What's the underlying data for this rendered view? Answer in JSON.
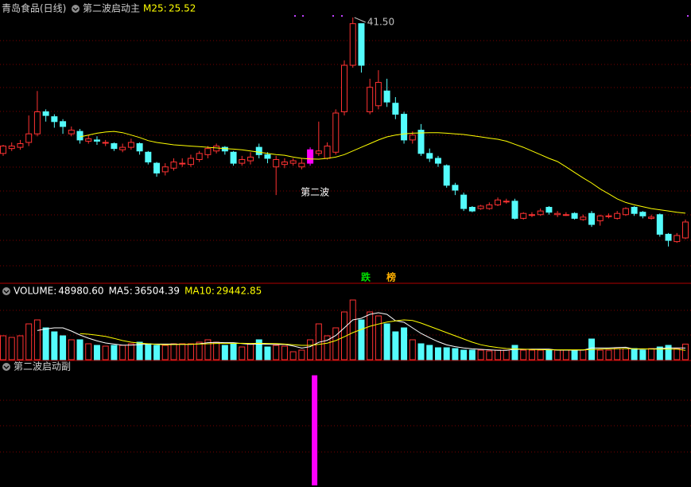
{
  "chart_data": [
    {
      "type": "candlestick",
      "title": "青岛食品(日线)",
      "subtitle": "第二波启动主",
      "open": [
        30.4,
        30.8,
        30.9,
        31.3,
        32.0,
        33.8,
        33.4,
        33.0,
        32.0,
        32.2,
        31.4,
        31.5,
        31.3,
        31.2,
        30.7,
        30.9,
        31.2,
        30.5,
        29.6,
        28.9,
        29.2,
        29.6,
        29.5,
        29.9,
        30.3,
        30.6,
        30.9,
        30.5,
        29.6,
        29.8,
        30.9,
        30.3,
        29.3,
        29.5,
        29.6,
        29.3,
        29.6,
        30.4,
        30.0,
        30.5,
        33.8,
        37.6,
        41.0,
        33.8,
        34.3,
        35.5,
        34.5,
        33.6,
        31.5,
        32.3,
        30.4,
        30.0,
        29.4,
        27.8,
        27.0,
        26.0,
        25.9,
        25.9,
        26.2,
        26.5,
        26.5,
        25.1,
        25.4,
        25.4,
        26.0,
        25.4,
        25.4,
        25.5,
        25.0,
        25.5,
        24.9,
        25.3,
        25.1,
        25.4,
        26.0,
        25.6,
        25.1,
        25.4,
        23.8,
        23.2,
        23.5
      ],
      "high": [
        31.1,
        31.3,
        31.5,
        33.5,
        35.5,
        34.0,
        33.6,
        33.2,
        32.6,
        32.4,
        31.9,
        31.8,
        31.5,
        31.3,
        31.2,
        31.6,
        31.3,
        30.6,
        29.7,
        29.6,
        30.0,
        30.0,
        30.3,
        30.6,
        31.0,
        31.2,
        31.0,
        30.6,
        30.2,
        30.5,
        31.2,
        30.5,
        30.2,
        30.0,
        30.0,
        30.0,
        30.9,
        33.0,
        31.3,
        34.0,
        38.0,
        41.5,
        41.0,
        36.5,
        37.2,
        36.5,
        35.0,
        33.8,
        32.2,
        32.8,
        30.8,
        30.2,
        29.5,
        28.0,
        27.2,
        26.1,
        26.2,
        26.4,
        26.8,
        26.7,
        26.7,
        25.6,
        25.6,
        25.9,
        26.1,
        25.7,
        25.6,
        25.6,
        25.4,
        25.7,
        25.4,
        25.5,
        25.7,
        26.0,
        26.1,
        25.7,
        25.4,
        25.5,
        23.9,
        23.9,
        25.0
      ],
      "low": [
        30.2,
        30.6,
        30.7,
        31.0,
        31.8,
        33.0,
        32.5,
        32.0,
        31.8,
        31.2,
        31.2,
        31.1,
        31.0,
        30.6,
        30.5,
        30.7,
        30.3,
        29.5,
        28.5,
        28.6,
        29.0,
        29.3,
        29.3,
        29.7,
        30.0,
        30.4,
        30.3,
        29.4,
        29.4,
        29.5,
        30.0,
        29.6,
        27.0,
        29.2,
        29.4,
        29.1,
        29.4,
        30.2,
        29.9,
        30.3,
        33.5,
        37.4,
        37.0,
        33.6,
        34.0,
        34.2,
        33.2,
        31.2,
        31.2,
        30.2,
        29.7,
        29.3,
        27.6,
        27.0,
        25.7,
        25.6,
        25.8,
        25.8,
        26.1,
        26.3,
        25.0,
        25.0,
        25.2,
        25.3,
        25.4,
        25.2,
        25.3,
        25.0,
        24.9,
        24.4,
        24.5,
        25.1,
        25.0,
        25.3,
        25.3,
        25.1,
        25.0,
        23.6,
        22.8,
        23.1,
        23.4
      ],
      "close": [
        31.0,
        31.0,
        31.2,
        32.0,
        33.8,
        33.5,
        33.0,
        32.6,
        32.3,
        31.5,
        31.6,
        31.4,
        31.3,
        30.8,
        30.9,
        31.3,
        30.6,
        29.7,
        28.8,
        29.3,
        29.7,
        29.6,
        30.0,
        30.4,
        30.8,
        31.0,
        30.6,
        29.6,
        29.9,
        30.1,
        30.3,
        30.0,
        29.9,
        29.7,
        29.8,
        29.6,
        30.7,
        30.6,
        31.0,
        33.7,
        37.6,
        41.0,
        37.6,
        35.8,
        36.2,
        34.6,
        33.6,
        31.5,
        31.9,
        30.4,
        30.0,
        29.6,
        27.8,
        27.4,
        25.9,
        25.7,
        26.1,
        26.2,
        26.6,
        26.5,
        25.1,
        25.5,
        25.4,
        25.7,
        25.6,
        25.5,
        25.4,
        25.1,
        25.2,
        24.6,
        25.3,
        25.3,
        25.5,
        25.9,
        25.5,
        25.3,
        25.2,
        23.8,
        23.3,
        23.7,
        24.8
      ],
      "up_color": "#ff3232",
      "down_color": "#54fcfc",
      "signal_color": "#ff00ff",
      "series": [
        {
          "name": "M25:",
          "color": "#ffff00",
          "values": [
            null,
            null,
            null,
            null,
            null,
            null,
            null,
            null,
            null,
            31.75,
            31.9,
            32.05,
            32.15,
            32.2,
            32.1,
            31.9,
            31.7,
            31.45,
            31.3,
            31.2,
            31.1,
            31.05,
            31.0,
            30.95,
            30.9,
            30.85,
            30.8,
            30.75,
            30.7,
            30.6,
            30.5,
            30.4,
            30.3,
            30.25,
            30.1,
            30.0,
            29.95,
            29.93,
            30.0,
            30.1,
            30.3,
            30.6,
            30.9,
            31.2,
            31.5,
            31.75,
            31.9,
            32.0,
            32.05,
            32.08,
            32.1,
            32.1,
            32.05,
            32.0,
            31.95,
            31.85,
            31.75,
            31.65,
            31.56,
            31.4,
            31.15,
            30.9,
            30.6,
            30.3,
            30.0,
            29.74,
            29.3,
            28.85,
            28.4,
            27.98,
            27.5,
            27.1,
            26.69,
            26.4,
            26.2,
            26.05,
            25.9,
            25.8,
            25.7,
            25.6,
            25.52
          ]
        }
      ],
      "ylim": [
        19.86,
        42.41
      ],
      "annotations": [
        {
          "text": "41.50",
          "index": 41,
          "value": 41.5
        },
        {
          "text": "第二波",
          "index": 36,
          "value": 27.2
        }
      ],
      "badges": [
        {
          "text": "跌",
          "color": "#00e000"
        },
        {
          "text": "榜",
          "color": "#ffb000"
        }
      ]
    },
    {
      "type": "volume",
      "series": [
        {
          "name": "VOLUME:",
          "readout": "48980.60",
          "color": "#ffffff",
          "values": [
            75000,
            70000,
            75000,
            112500,
            125000,
            100000,
            87500,
            75000,
            62500,
            62500,
            50000,
            45000,
            42500,
            45000,
            45000,
            50000,
            55000,
            50000,
            45000,
            45000,
            50000,
            50000,
            50000,
            55000,
            62500,
            55000,
            45000,
            50000,
            40000,
            50000,
            62500,
            40000,
            45000,
            42500,
            25000,
            30000,
            62500,
            112500,
            75000,
            100000,
            150000,
            187500,
            125000,
            150000,
            137500,
            112500,
            87500,
            100000,
            62500,
            50000,
            45000,
            37500,
            37500,
            35000,
            30000,
            30000,
            30000,
            27500,
            30000,
            30000,
            45000,
            30000,
            30000,
            30000,
            30000,
            30000,
            30000,
            30000,
            30000,
            65000,
            30000,
            30000,
            35000,
            35000,
            35000,
            30000,
            35000,
            40000,
            45000,
            35000,
            48980.6
          ]
        },
        {
          "name": "MA5:",
          "readout": "36504.39",
          "color": "#ffffff",
          "values": [
            null,
            null,
            null,
            null,
            91500,
            96500,
            100000,
            100000,
            90000,
            77500,
            67500,
            59000,
            52500,
            49000,
            45500,
            45500,
            47500,
            49000,
            49000,
            49000,
            49000,
            48000,
            48000,
            50000,
            53500,
            54500,
            53500,
            53500,
            50500,
            48000,
            49500,
            48500,
            47500,
            48000,
            43000,
            36500,
            41000,
            54500,
            61000,
            76000,
            100000,
            125000,
            130000,
            142500,
            147500,
            142500,
            122500,
            117500,
            100000,
            82500,
            69000,
            56500,
            46500,
            41000,
            37000,
            34000,
            32500,
            31000,
            29500,
            29500,
            32500,
            32500,
            33000,
            33000,
            33000,
            30000,
            30000,
            30000,
            30000,
            37000,
            37000,
            37000,
            38000,
            39000,
            33000,
            33000,
            34000,
            35000,
            37000,
            37000,
            36504.39
          ]
        },
        {
          "name": "MA10:",
          "readout": "29442.85",
          "color": "#ffff00",
          "values": [
            null,
            null,
            null,
            null,
            null,
            null,
            null,
            null,
            null,
            82000,
            80000,
            77000,
            73000,
            67000,
            60000,
            55000,
            52000,
            50000,
            48000,
            47000,
            47500,
            48000,
            48500,
            49000,
            50000,
            51000,
            51000,
            51000,
            51500,
            51000,
            51500,
            51000,
            50500,
            49000,
            47000,
            45000,
            45000,
            48000,
            52000,
            60000,
            72000,
            85000,
            95000,
            105000,
            112000,
            118000,
            122000,
            125000,
            123000,
            115000,
            105000,
            95000,
            85000,
            75000,
            65000,
            55000,
            47000,
            42000,
            38000,
            35000,
            34000,
            33000,
            32000,
            31500,
            31000,
            31000,
            31000,
            31000,
            31000,
            32000,
            33000,
            34000,
            34500,
            35000,
            34000,
            34000,
            33500,
            33000,
            33000,
            33000,
            29442.85
          ]
        }
      ],
      "ylim": [
        0,
        230000
      ]
    },
    {
      "type": "signal",
      "title": "第二波启动副",
      "color": "#ff00ff",
      "values": [
        0,
        0,
        0,
        0,
        0,
        0,
        0,
        0,
        0,
        0,
        0,
        0,
        0,
        0,
        0,
        0,
        0,
        0,
        0,
        0,
        0,
        0,
        0,
        0,
        0,
        0,
        0,
        0,
        0,
        0,
        0,
        0,
        0,
        0,
        0,
        0,
        1,
        0,
        0,
        0,
        0,
        0,
        0,
        0,
        0,
        0,
        0,
        0,
        0,
        0,
        0,
        0,
        0,
        0,
        0,
        0,
        0,
        0,
        0,
        0,
        0,
        0,
        0,
        0,
        0,
        0,
        0,
        0,
        0,
        0,
        0,
        0,
        0,
        0,
        0,
        0,
        0,
        0,
        0,
        0,
        0
      ],
      "ylim": [
        0,
        1.12
      ]
    }
  ]
}
